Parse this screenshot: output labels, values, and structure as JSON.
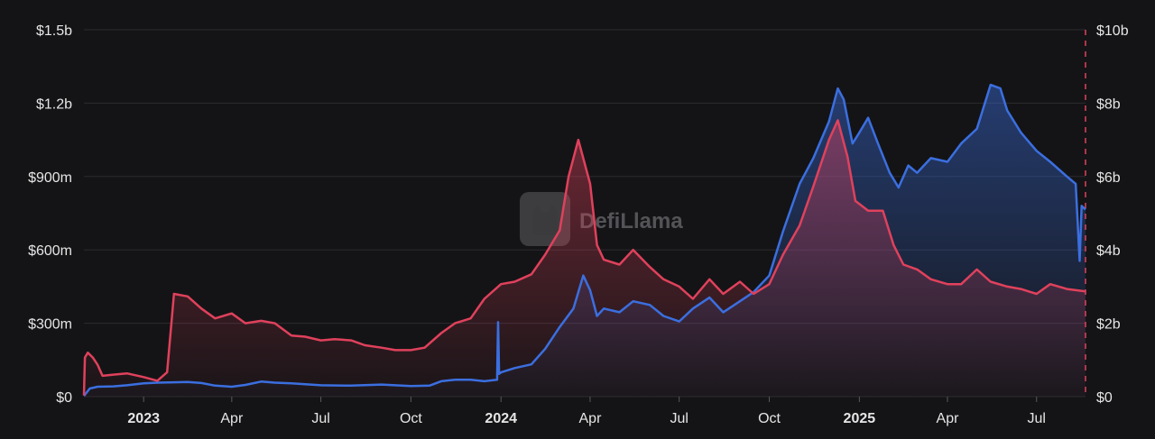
{
  "chart_data": {
    "type": "area",
    "title": "",
    "watermark": "DefiLlama",
    "x_range": [
      "2022-11-01",
      "2025-08-20"
    ],
    "left_axis": {
      "ylim": [
        0,
        1500000000
      ],
      "ticks": [
        {
          "value": 0,
          "label": "$0"
        },
        {
          "value": 300000000,
          "label": "$300m"
        },
        {
          "value": 600000000,
          "label": "$600m"
        },
        {
          "value": 900000000,
          "label": "$900m"
        },
        {
          "value": 1200000000,
          "label": "$1.2b"
        },
        {
          "value": 1500000000,
          "label": "$1.5b"
        }
      ]
    },
    "right_axis": {
      "ylim": [
        0,
        10000000000
      ],
      "ticks": [
        {
          "value": 0,
          "label": "$0"
        },
        {
          "value": 2000000000,
          "label": "$2b"
        },
        {
          "value": 4000000000,
          "label": "$4b"
        },
        {
          "value": 6000000000,
          "label": "$6b"
        },
        {
          "value": 8000000000,
          "label": "$8b"
        },
        {
          "value": 10000000000,
          "label": "$10b"
        }
      ]
    },
    "x_ticks": [
      {
        "date": "2023-01-01",
        "label": "2023",
        "year": true
      },
      {
        "date": "2023-04-01",
        "label": "Apr",
        "year": false
      },
      {
        "date": "2023-07-01",
        "label": "Jul",
        "year": false
      },
      {
        "date": "2023-10-01",
        "label": "Oct",
        "year": false
      },
      {
        "date": "2024-01-01",
        "label": "2024",
        "year": true
      },
      {
        "date": "2024-04-01",
        "label": "Apr",
        "year": false
      },
      {
        "date": "2024-07-01",
        "label": "Jul",
        "year": false
      },
      {
        "date": "2024-10-01",
        "label": "Oct",
        "year": false
      },
      {
        "date": "2025-01-01",
        "label": "2025",
        "year": true
      },
      {
        "date": "2025-04-01",
        "label": "Apr",
        "year": false
      },
      {
        "date": "2025-07-01",
        "label": "Jul",
        "year": false
      }
    ],
    "series": [
      {
        "axis": "right",
        "color": "#3b6fe0",
        "points": [
          [
            "2022-11-01",
            20000000
          ],
          [
            "2022-11-07",
            220000000
          ],
          [
            "2022-11-15",
            270000000
          ],
          [
            "2022-12-01",
            280000000
          ],
          [
            "2022-12-15",
            310000000
          ],
          [
            "2023-01-01",
            360000000
          ],
          [
            "2023-01-15",
            380000000
          ],
          [
            "2023-02-01",
            390000000
          ],
          [
            "2023-02-15",
            400000000
          ],
          [
            "2023-03-01",
            370000000
          ],
          [
            "2023-03-15",
            300000000
          ],
          [
            "2023-04-01",
            270000000
          ],
          [
            "2023-04-15",
            320000000
          ],
          [
            "2023-05-01",
            410000000
          ],
          [
            "2023-05-15",
            380000000
          ],
          [
            "2023-06-01",
            360000000
          ],
          [
            "2023-07-01",
            310000000
          ],
          [
            "2023-08-01",
            300000000
          ],
          [
            "2023-09-01",
            330000000
          ],
          [
            "2023-10-01",
            290000000
          ],
          [
            "2023-10-20",
            300000000
          ],
          [
            "2023-11-01",
            420000000
          ],
          [
            "2023-11-15",
            460000000
          ],
          [
            "2023-12-01",
            460000000
          ],
          [
            "2023-12-15",
            420000000
          ],
          [
            "2023-12-28",
            460000000
          ],
          [
            "2023-12-29",
            2030000000
          ],
          [
            "2023-12-30",
            620000000
          ],
          [
            "2024-01-01",
            660000000
          ],
          [
            "2024-01-15",
            780000000
          ],
          [
            "2024-02-01",
            880000000
          ],
          [
            "2024-02-15",
            1300000000
          ],
          [
            "2024-03-01",
            1900000000
          ],
          [
            "2024-03-15",
            2400000000
          ],
          [
            "2024-03-25",
            3300000000
          ],
          [
            "2024-04-01",
            2900000000
          ],
          [
            "2024-04-08",
            2200000000
          ],
          [
            "2024-04-15",
            2400000000
          ],
          [
            "2024-05-01",
            2300000000
          ],
          [
            "2024-05-15",
            2600000000
          ],
          [
            "2024-06-01",
            2500000000
          ],
          [
            "2024-06-15",
            2200000000
          ],
          [
            "2024-07-01",
            2050000000
          ],
          [
            "2024-07-15",
            2400000000
          ],
          [
            "2024-08-01",
            2700000000
          ],
          [
            "2024-08-15",
            2300000000
          ],
          [
            "2024-09-01",
            2600000000
          ],
          [
            "2024-09-15",
            2850000000
          ],
          [
            "2024-10-01",
            3300000000
          ],
          [
            "2024-10-15",
            4500000000
          ],
          [
            "2024-11-01",
            5800000000
          ],
          [
            "2024-11-15",
            6500000000
          ],
          [
            "2024-12-01",
            7500000000
          ],
          [
            "2024-12-10",
            8400000000
          ],
          [
            "2024-12-16",
            8100000000
          ],
          [
            "2024-12-25",
            6900000000
          ],
          [
            "2025-01-01",
            7200000000
          ],
          [
            "2025-01-10",
            7600000000
          ],
          [
            "2025-01-20",
            6900000000
          ],
          [
            "2025-02-01",
            6100000000
          ],
          [
            "2025-02-10",
            5700000000
          ],
          [
            "2025-02-20",
            6300000000
          ],
          [
            "2025-03-01",
            6100000000
          ],
          [
            "2025-03-15",
            6500000000
          ],
          [
            "2025-04-01",
            6400000000
          ],
          [
            "2025-04-15",
            6900000000
          ],
          [
            "2025-05-01",
            7300000000
          ],
          [
            "2025-05-15",
            8500000000
          ],
          [
            "2025-05-25",
            8400000000
          ],
          [
            "2025-06-01",
            7800000000
          ],
          [
            "2025-06-15",
            7200000000
          ],
          [
            "2025-07-01",
            6700000000
          ],
          [
            "2025-07-15",
            6400000000
          ],
          [
            "2025-08-01",
            6000000000
          ],
          [
            "2025-08-10",
            5800000000
          ],
          [
            "2025-08-14",
            3700000000
          ],
          [
            "2025-08-16",
            5200000000
          ],
          [
            "2025-08-20",
            5100000000
          ]
        ]
      },
      {
        "axis": "left",
        "color": "#e0415c",
        "points": [
          [
            "2022-11-01",
            5000000
          ],
          [
            "2022-11-02",
            160000000
          ],
          [
            "2022-11-05",
            180000000
          ],
          [
            "2022-11-10",
            160000000
          ],
          [
            "2022-11-15",
            130000000
          ],
          [
            "2022-11-20",
            85000000
          ],
          [
            "2022-12-01",
            90000000
          ],
          [
            "2022-12-15",
            95000000
          ],
          [
            "2023-01-01",
            80000000
          ],
          [
            "2023-01-15",
            65000000
          ],
          [
            "2023-01-25",
            100000000
          ],
          [
            "2023-02-01",
            420000000
          ],
          [
            "2023-02-15",
            410000000
          ],
          [
            "2023-03-01",
            360000000
          ],
          [
            "2023-03-15",
            320000000
          ],
          [
            "2023-04-01",
            340000000
          ],
          [
            "2023-04-15",
            300000000
          ],
          [
            "2023-05-01",
            310000000
          ],
          [
            "2023-05-15",
            300000000
          ],
          [
            "2023-06-01",
            250000000
          ],
          [
            "2023-06-15",
            245000000
          ],
          [
            "2023-07-01",
            230000000
          ],
          [
            "2023-07-15",
            235000000
          ],
          [
            "2023-08-01",
            230000000
          ],
          [
            "2023-08-15",
            210000000
          ],
          [
            "2023-09-01",
            200000000
          ],
          [
            "2023-09-15",
            190000000
          ],
          [
            "2023-10-01",
            190000000
          ],
          [
            "2023-10-15",
            200000000
          ],
          [
            "2023-11-01",
            260000000
          ],
          [
            "2023-11-15",
            300000000
          ],
          [
            "2023-12-01",
            320000000
          ],
          [
            "2023-12-15",
            400000000
          ],
          [
            "2024-01-01",
            460000000
          ],
          [
            "2024-01-15",
            470000000
          ],
          [
            "2024-02-01",
            500000000
          ],
          [
            "2024-02-15",
            580000000
          ],
          [
            "2024-03-01",
            680000000
          ],
          [
            "2024-03-10",
            900000000
          ],
          [
            "2024-03-20",
            1050000000
          ],
          [
            "2024-04-01",
            870000000
          ],
          [
            "2024-04-08",
            620000000
          ],
          [
            "2024-04-15",
            560000000
          ],
          [
            "2024-05-01",
            540000000
          ],
          [
            "2024-05-15",
            600000000
          ],
          [
            "2024-06-01",
            530000000
          ],
          [
            "2024-06-15",
            480000000
          ],
          [
            "2024-07-01",
            450000000
          ],
          [
            "2024-07-15",
            400000000
          ],
          [
            "2024-08-01",
            480000000
          ],
          [
            "2024-08-15",
            420000000
          ],
          [
            "2024-09-01",
            470000000
          ],
          [
            "2024-09-15",
            420000000
          ],
          [
            "2024-10-01",
            460000000
          ],
          [
            "2024-10-15",
            580000000
          ],
          [
            "2024-11-01",
            700000000
          ],
          [
            "2024-11-15",
            860000000
          ],
          [
            "2024-12-01",
            1050000000
          ],
          [
            "2024-12-10",
            1130000000
          ],
          [
            "2024-12-20",
            980000000
          ],
          [
            "2024-12-28",
            800000000
          ],
          [
            "2025-01-10",
            760000000
          ],
          [
            "2025-01-25",
            760000000
          ],
          [
            "2025-02-05",
            620000000
          ],
          [
            "2025-02-15",
            540000000
          ],
          [
            "2025-03-01",
            520000000
          ],
          [
            "2025-03-15",
            480000000
          ],
          [
            "2025-04-01",
            460000000
          ],
          [
            "2025-04-15",
            460000000
          ],
          [
            "2025-05-01",
            520000000
          ],
          [
            "2025-05-15",
            470000000
          ],
          [
            "2025-06-01",
            450000000
          ],
          [
            "2025-06-15",
            440000000
          ],
          [
            "2025-07-01",
            420000000
          ],
          [
            "2025-07-15",
            460000000
          ],
          [
            "2025-08-01",
            440000000
          ],
          [
            "2025-08-20",
            430000000
          ]
        ]
      }
    ],
    "grid": true,
    "legend": "none"
  }
}
